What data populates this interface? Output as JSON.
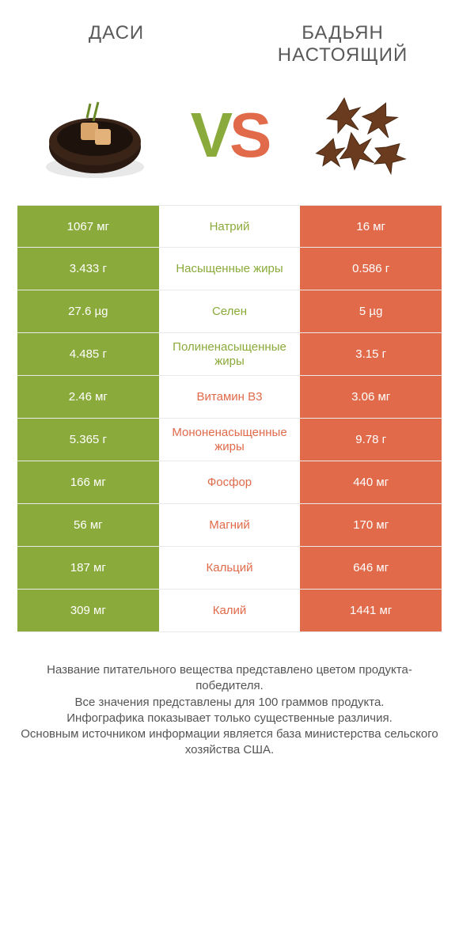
{
  "colors": {
    "green": "#8aaa3b",
    "orange": "#e06a4a",
    "text": "#555555",
    "bg": "#ffffff",
    "divider": "#e9e9e9"
  },
  "header": {
    "left_title": "ДАСИ",
    "right_title": "БАДЬЯН НАСТОЯЩИЙ",
    "vs_v": "V",
    "vs_s": "S"
  },
  "rows": [
    {
      "left": "1067 мг",
      "label": "Натрий",
      "right": "16 мг",
      "winner": "left"
    },
    {
      "left": "3.433 г",
      "label": "Насыщенные жиры",
      "right": "0.586 г",
      "winner": "left"
    },
    {
      "left": "27.6 µg",
      "label": "Селен",
      "right": "5 µg",
      "winner": "left"
    },
    {
      "left": "4.485 г",
      "label": "Полиненасыщенные жиры",
      "right": "3.15 г",
      "winner": "left"
    },
    {
      "left": "2.46 мг",
      "label": "Витамин B3",
      "right": "3.06 мг",
      "winner": "right"
    },
    {
      "left": "5.365 г",
      "label": "Мононенасыщенные жиры",
      "right": "9.78 г",
      "winner": "right"
    },
    {
      "left": "166 мг",
      "label": "Фосфор",
      "right": "440 мг",
      "winner": "right"
    },
    {
      "left": "56 мг",
      "label": "Магний",
      "right": "170 мг",
      "winner": "right"
    },
    {
      "left": "187 мг",
      "label": "Кальций",
      "right": "646 мг",
      "winner": "right"
    },
    {
      "left": "309 мг",
      "label": "Калий",
      "right": "1441 мг",
      "winner": "right"
    }
  ],
  "footer": {
    "lines": [
      "Название питательного вещества представлено цветом продукта-победителя.",
      "Все значения представлены для 100 граммов продукта.",
      "Инфографика показывает только существенные различия.",
      "Основным источником информации является база министерства сельского хозяйства США."
    ]
  }
}
